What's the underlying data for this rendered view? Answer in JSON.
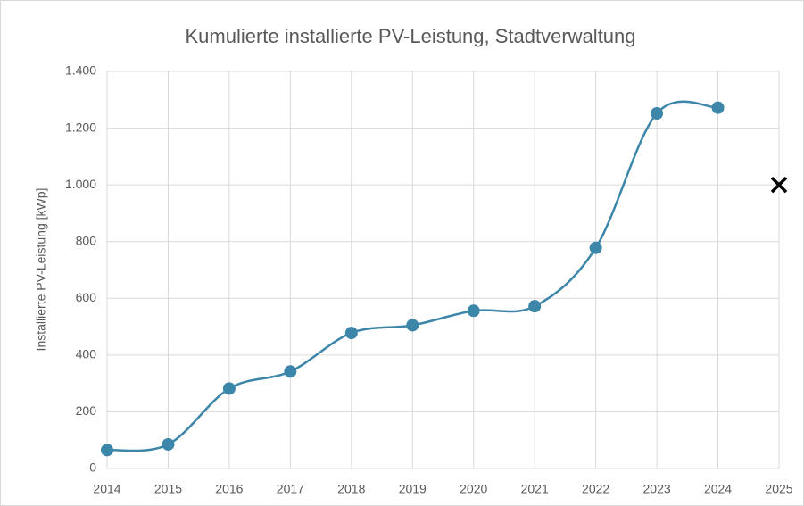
{
  "chart_data": {
    "type": "line",
    "title": "Kumulierte installierte PV-Leistung, Stadtverwaltung",
    "y_label": "Installierte PV-Leistung [kWp]",
    "x": [
      2014,
      2015,
      2016,
      2017,
      2018,
      2019,
      2020,
      2021,
      2022,
      2023,
      2024,
      2025
    ],
    "series": [
      {
        "color": "#3c86a9",
        "marker": "circle",
        "smooth": true,
        "values": [
          65,
          85,
          282,
          342,
          478,
          505,
          556,
          572,
          778,
          1252,
          1272,
          null
        ]
      },
      {
        "color": "#000000",
        "marker": "cross",
        "smooth": false,
        "values": [
          null,
          null,
          null,
          null,
          null,
          null,
          null,
          null,
          null,
          null,
          null,
          1000
        ]
      }
    ],
    "xlim": [
      2014,
      2025
    ],
    "xticks": [
      2014,
      2015,
      2016,
      2017,
      2018,
      2019,
      2020,
      2021,
      2022,
      2023,
      2024,
      2025
    ],
    "ylim": [
      0,
      1400
    ],
    "yticks": [
      0,
      200,
      400,
      600,
      800,
      {
        "value": 1000,
        "label": "1.000"
      },
      {
        "value": 1200,
        "label": "1.200"
      },
      {
        "value": 1400,
        "label": "1.400"
      }
    ],
    "grid": true
  }
}
